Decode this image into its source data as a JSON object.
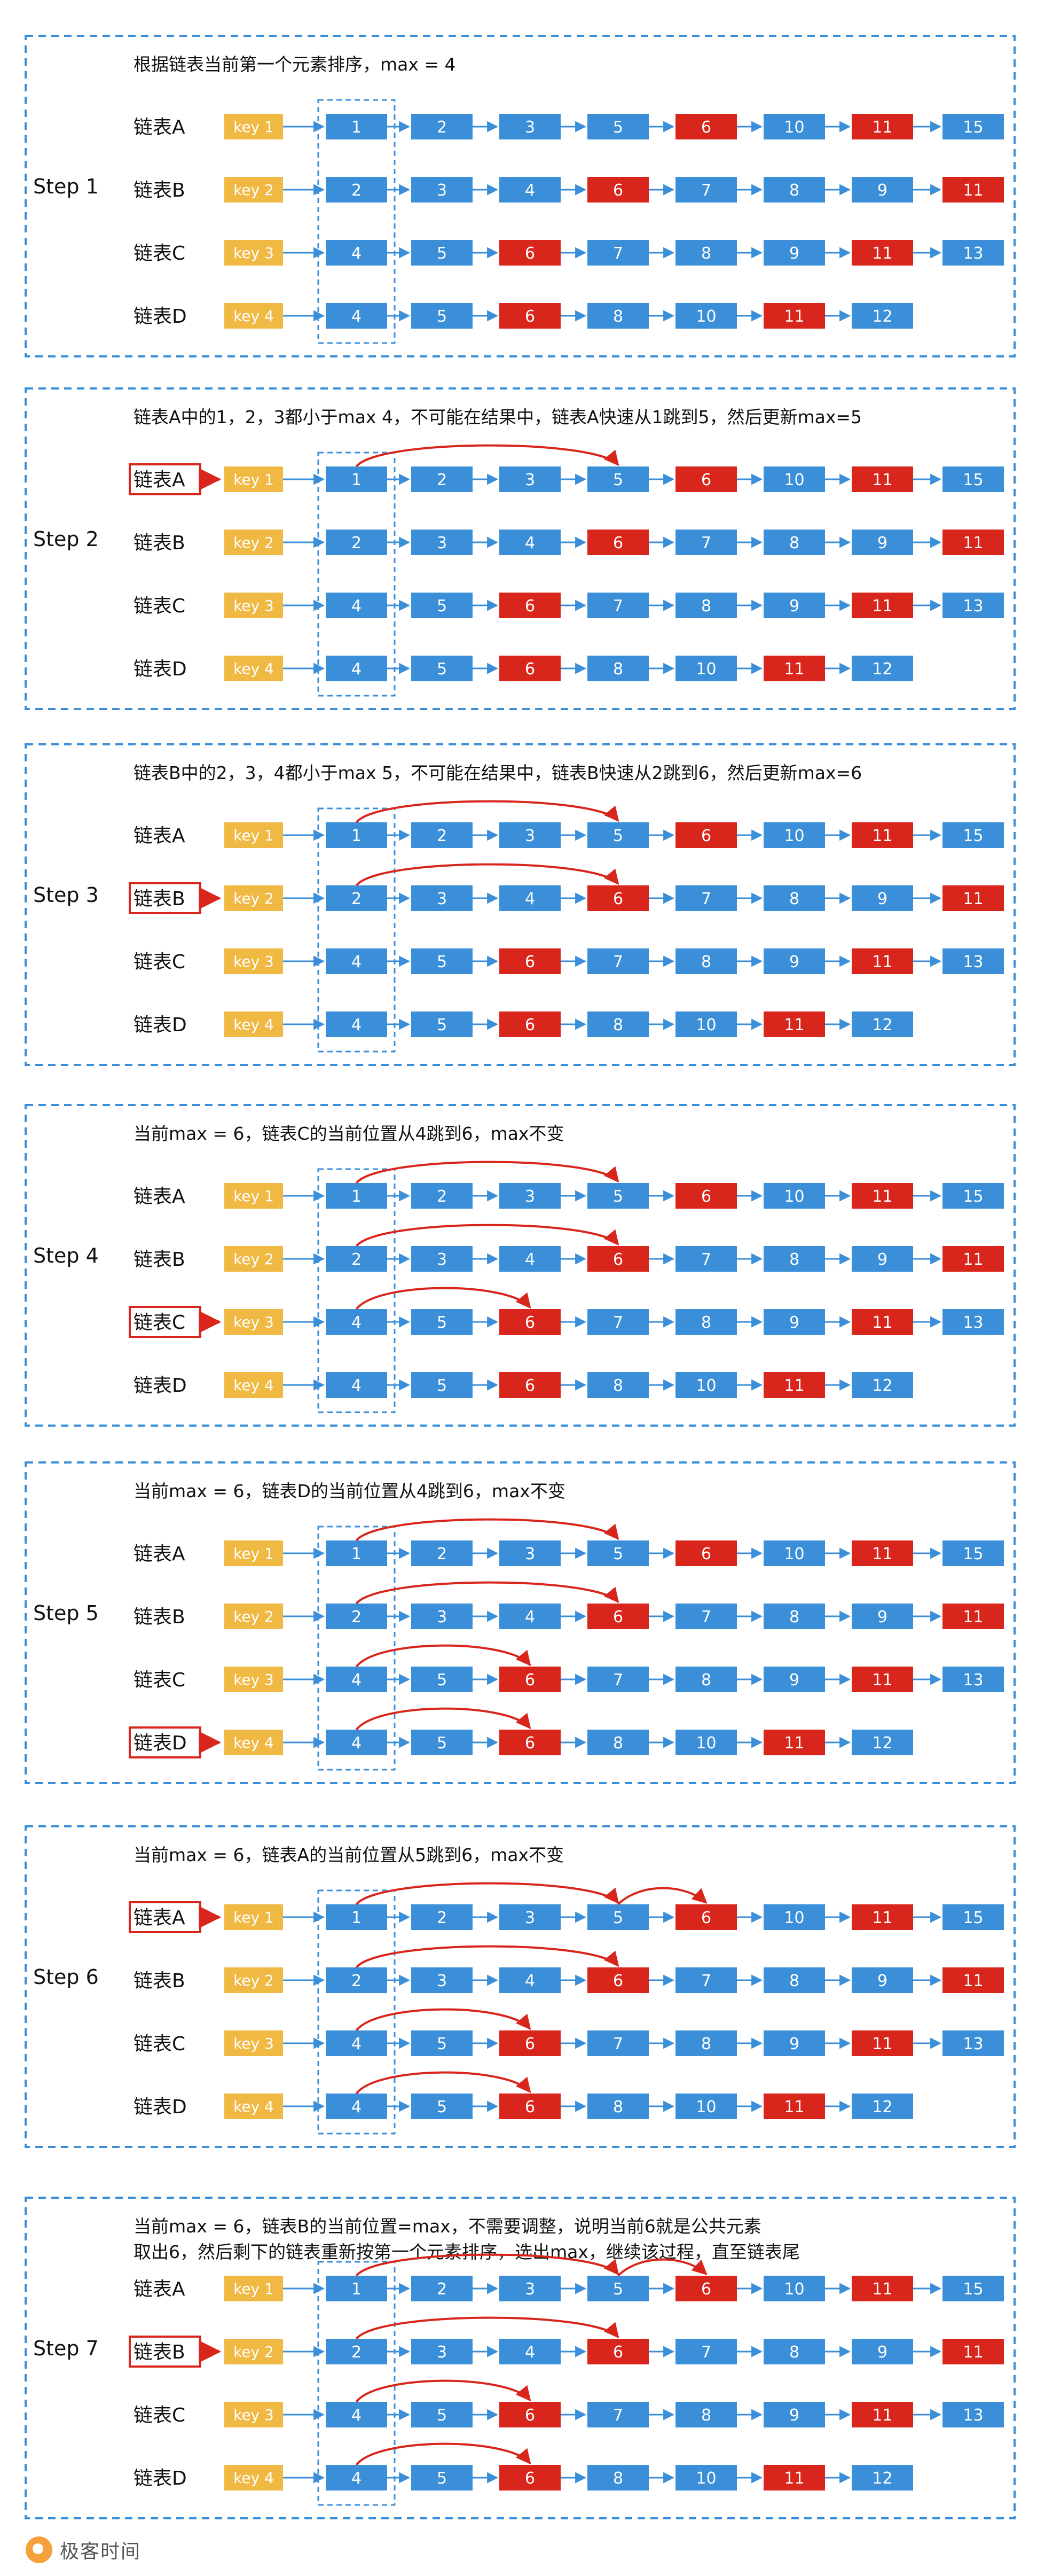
{
  "row_labels": [
    "链表A",
    "链表B",
    "链表C",
    "链表D"
  ],
  "keys": [
    "key 1",
    "key 2",
    "key 3",
    "key 4"
  ],
  "lists": [
    [
      "1",
      "2",
      "3",
      "5",
      "6",
      "10",
      "11",
      "15"
    ],
    [
      "2",
      "3",
      "4",
      "6",
      "7",
      "8",
      "9",
      "11"
    ],
    [
      "4",
      "5",
      "6",
      "7",
      "8",
      "9",
      "11",
      "13"
    ],
    [
      "4",
      "5",
      "6",
      "8",
      "10",
      "11",
      "12"
    ]
  ],
  "red_cells": [
    [
      4,
      6
    ],
    [
      3,
      7
    ],
    [
      2,
      6
    ],
    [
      2,
      5
    ]
  ],
  "colors": {
    "blue": "#3b8fd8",
    "red": "#d9261c",
    "yellow": "#f0b944",
    "frame": "#3b8fd8",
    "highlight": "#d9261c"
  },
  "steps": [
    {
      "label": "Step 1",
      "notes": [
        "根据链表当前第一个元素排序，max = 4"
      ],
      "highlight": -1,
      "jumps": []
    },
    {
      "label": "Step 2",
      "notes": [
        "链表A中的1，2，3都小于max 4，不可能在结果中，链表A快速从1跳到5，然后更新max=5"
      ],
      "highlight": 0,
      "jumps": [
        [
          0,
          0,
          3
        ]
      ]
    },
    {
      "label": "Step 3",
      "notes": [
        "链表B中的2，3，4都小于max 5，不可能在结果中，链表B快速从2跳到6，然后更新max=6"
      ],
      "highlight": 1,
      "jumps": [
        [
          0,
          0,
          3
        ],
        [
          1,
          0,
          3
        ]
      ]
    },
    {
      "label": "Step 4",
      "notes": [
        "当前max = 6，链表C的当前位置从4跳到6，max不变"
      ],
      "highlight": 2,
      "jumps": [
        [
          0,
          0,
          3
        ],
        [
          1,
          0,
          3
        ],
        [
          2,
          0,
          2
        ]
      ]
    },
    {
      "label": "Step 5",
      "notes": [
        "当前max = 6，链表D的当前位置从4跳到6，max不变"
      ],
      "highlight": 3,
      "jumps": [
        [
          0,
          0,
          3
        ],
        [
          1,
          0,
          3
        ],
        [
          2,
          0,
          2
        ],
        [
          3,
          0,
          2
        ]
      ]
    },
    {
      "label": "Step 6",
      "notes": [
        "当前max = 6，链表A的当前位置从5跳到6，max不变"
      ],
      "highlight": 0,
      "jumps": [
        [
          0,
          0,
          3
        ],
        [
          0,
          3,
          4
        ],
        [
          1,
          0,
          3
        ],
        [
          2,
          0,
          2
        ],
        [
          3,
          0,
          2
        ]
      ]
    },
    {
      "label": "Step 7",
      "notes": [
        "当前max = 6，链表B的当前位置=max，不需要调整，说明当前6就是公共元素",
        "取出6，然后剩下的链表重新按第一个元素排序，选出max，继续该过程，直至链表尾"
      ],
      "highlight": 1,
      "jumps": [
        [
          0,
          0,
          3
        ],
        [
          0,
          3,
          4
        ],
        [
          1,
          0,
          3
        ],
        [
          2,
          0,
          2
        ],
        [
          3,
          0,
          2
        ]
      ]
    }
  ],
  "footer": {
    "logo_text": "极客时间",
    "logo_icon": "geektime-logo-icon"
  }
}
